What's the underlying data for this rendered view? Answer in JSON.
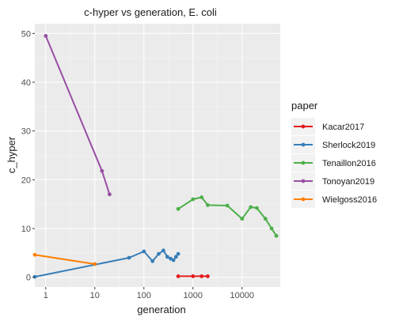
{
  "chart_data": {
    "type": "line",
    "title": "c-hyper vs generation, E. coli",
    "xlabel": "generation",
    "ylabel": "c_hyper",
    "x_scale": "log10",
    "xlim": [
      0.6,
      60000
    ],
    "ylim": [
      -2,
      52
    ],
    "x_ticks": [
      1,
      10,
      100,
      1000,
      10000
    ],
    "x_tick_labels": [
      "1",
      "10",
      "100",
      "1000",
      "10000"
    ],
    "y_ticks": [
      0,
      10,
      20,
      30,
      40,
      50
    ],
    "y_tick_labels": [
      "0",
      "10",
      "20",
      "30",
      "40",
      "50"
    ],
    "grid": true,
    "legend": {
      "title": "paper",
      "position": "right"
    },
    "series": [
      {
        "name": "Kacar2017",
        "color": "#E41A1C",
        "points": [
          [
            500,
            0.2
          ],
          [
            1000,
            0.2
          ],
          [
            1500,
            0.2
          ],
          [
            2000,
            0.2
          ]
        ]
      },
      {
        "name": "Sherlock2019",
        "color": "#377EB8",
        "points": [
          [
            0.6,
            0.1
          ],
          [
            50,
            4.0
          ],
          [
            100,
            5.3
          ],
          [
            150,
            3.3
          ],
          [
            200,
            4.8
          ],
          [
            250,
            5.5
          ],
          [
            300,
            4.2
          ],
          [
            350,
            3.8
          ],
          [
            400,
            3.5
          ],
          [
            450,
            4.2
          ],
          [
            500,
            4.8
          ]
        ]
      },
      {
        "name": "Tenaillon2016",
        "color": "#4DAF4A",
        "points": [
          [
            500,
            14.0
          ],
          [
            1000,
            16.0
          ],
          [
            1500,
            16.4
          ],
          [
            2000,
            14.8
          ],
          [
            5000,
            14.7
          ],
          [
            10000,
            12.0
          ],
          [
            15000,
            14.4
          ],
          [
            20000,
            14.2
          ],
          [
            30000,
            12.0
          ],
          [
            40000,
            10.0
          ],
          [
            50000,
            8.5
          ]
        ]
      },
      {
        "name": "Tonoyan2019",
        "color": "#984EA3",
        "points": [
          [
            1,
            49.5
          ],
          [
            14,
            21.8
          ],
          [
            20,
            17.0
          ]
        ]
      },
      {
        "name": "Wielgoss2016",
        "color": "#FF7F00",
        "points": [
          [
            0.6,
            4.6
          ],
          [
            10,
            2.7
          ]
        ]
      }
    ]
  }
}
